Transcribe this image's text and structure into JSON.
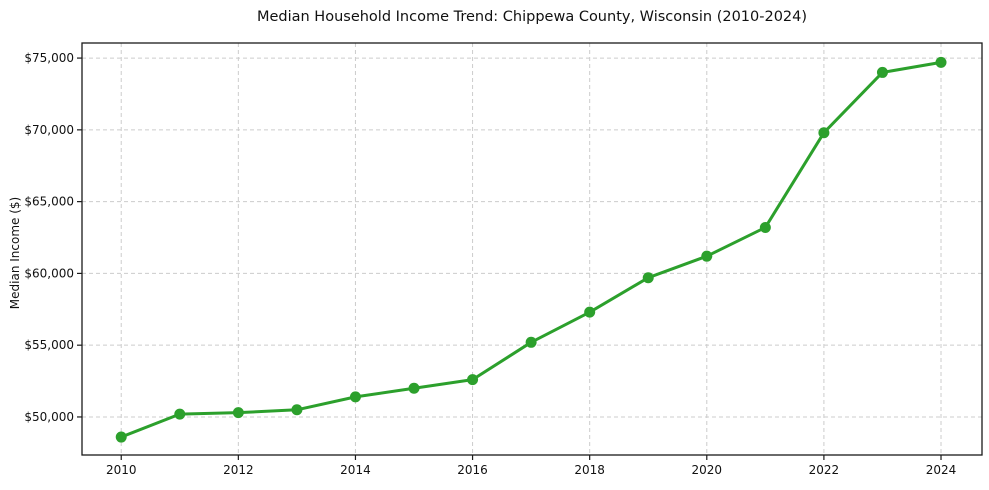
{
  "page": {
    "background": "#ffffff"
  },
  "chart_data": {
    "type": "line",
    "title": "Median Household Income Trend: Chippewa County, Wisconsin (2010-2024)",
    "xlabel": "",
    "ylabel": "Median Income ($)",
    "series": [
      {
        "name": "Median household income",
        "x": [
          2010,
          2011,
          2012,
          2013,
          2014,
          2015,
          2016,
          2017,
          2018,
          2019,
          2020,
          2021,
          2022,
          2023,
          2024
        ],
        "values": [
          48600,
          50200,
          50300,
          50500,
          51400,
          52000,
          52600,
          55200,
          57300,
          59700,
          61200,
          63200,
          69800,
          74000,
          74700
        ],
        "color": "#2ca02c",
        "marker": "circle",
        "line_width": 3,
        "marker_radius": 5.5
      }
    ],
    "xlim": [
      2009.33,
      2024.7
    ],
    "ylim": [
      47350,
      76050
    ],
    "x_ticks": [
      2010,
      2012,
      2014,
      2016,
      2018,
      2020,
      2022,
      2024
    ],
    "x_tick_labels": [
      "2010",
      "2012",
      "2014",
      "2016",
      "2018",
      "2020",
      "2022",
      "2024"
    ],
    "y_ticks": [
      50000,
      55000,
      60000,
      65000,
      70000,
      75000
    ],
    "y_tick_labels": [
      "$50,000",
      "$55,000",
      "$60,000",
      "$65,000",
      "$70,000",
      "$75,000"
    ],
    "grid": true,
    "grid_style": "dashed",
    "legend_position": "none"
  },
  "style": {
    "accent_green": "#2ca02c",
    "grid_color": "#cccccc",
    "spine_color": "#1a1a1a",
    "text_color": "#111111"
  }
}
